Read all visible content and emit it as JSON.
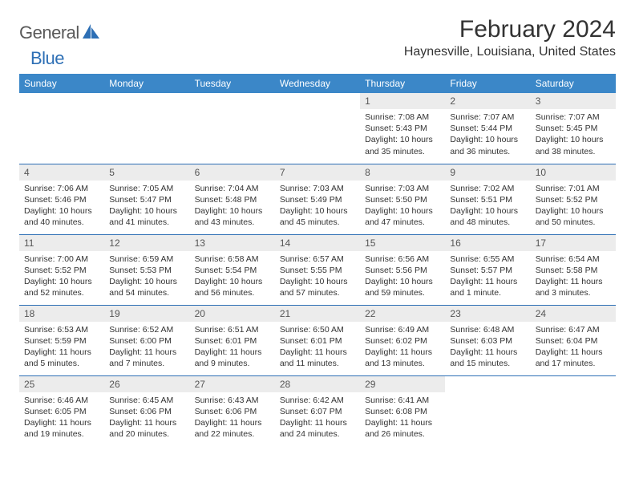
{
  "logo": {
    "general": "General",
    "blue": "Blue"
  },
  "title": "February 2024",
  "location": "Haynesville, Louisiana, United States",
  "colors": {
    "header_bg": "#3b87c8",
    "header_text": "#ffffff",
    "day_num_bg": "#ececec",
    "border": "#2d6fb5",
    "logo_blue": "#2d6fb5",
    "logo_gray": "#5a5a5a",
    "text": "#333333"
  },
  "weekdays": [
    "Sunday",
    "Monday",
    "Tuesday",
    "Wednesday",
    "Thursday",
    "Friday",
    "Saturday"
  ],
  "weeks": [
    [
      null,
      null,
      null,
      null,
      {
        "n": "1",
        "sr": "7:08 AM",
        "ss": "5:43 PM",
        "dl": "10 hours and 35 minutes."
      },
      {
        "n": "2",
        "sr": "7:07 AM",
        "ss": "5:44 PM",
        "dl": "10 hours and 36 minutes."
      },
      {
        "n": "3",
        "sr": "7:07 AM",
        "ss": "5:45 PM",
        "dl": "10 hours and 38 minutes."
      }
    ],
    [
      {
        "n": "4",
        "sr": "7:06 AM",
        "ss": "5:46 PM",
        "dl": "10 hours and 40 minutes."
      },
      {
        "n": "5",
        "sr": "7:05 AM",
        "ss": "5:47 PM",
        "dl": "10 hours and 41 minutes."
      },
      {
        "n": "6",
        "sr": "7:04 AM",
        "ss": "5:48 PM",
        "dl": "10 hours and 43 minutes."
      },
      {
        "n": "7",
        "sr": "7:03 AM",
        "ss": "5:49 PM",
        "dl": "10 hours and 45 minutes."
      },
      {
        "n": "8",
        "sr": "7:03 AM",
        "ss": "5:50 PM",
        "dl": "10 hours and 47 minutes."
      },
      {
        "n": "9",
        "sr": "7:02 AM",
        "ss": "5:51 PM",
        "dl": "10 hours and 48 minutes."
      },
      {
        "n": "10",
        "sr": "7:01 AM",
        "ss": "5:52 PM",
        "dl": "10 hours and 50 minutes."
      }
    ],
    [
      {
        "n": "11",
        "sr": "7:00 AM",
        "ss": "5:52 PM",
        "dl": "10 hours and 52 minutes."
      },
      {
        "n": "12",
        "sr": "6:59 AM",
        "ss": "5:53 PM",
        "dl": "10 hours and 54 minutes."
      },
      {
        "n": "13",
        "sr": "6:58 AM",
        "ss": "5:54 PM",
        "dl": "10 hours and 56 minutes."
      },
      {
        "n": "14",
        "sr": "6:57 AM",
        "ss": "5:55 PM",
        "dl": "10 hours and 57 minutes."
      },
      {
        "n": "15",
        "sr": "6:56 AM",
        "ss": "5:56 PM",
        "dl": "10 hours and 59 minutes."
      },
      {
        "n": "16",
        "sr": "6:55 AM",
        "ss": "5:57 PM",
        "dl": "11 hours and 1 minute."
      },
      {
        "n": "17",
        "sr": "6:54 AM",
        "ss": "5:58 PM",
        "dl": "11 hours and 3 minutes."
      }
    ],
    [
      {
        "n": "18",
        "sr": "6:53 AM",
        "ss": "5:59 PM",
        "dl": "11 hours and 5 minutes."
      },
      {
        "n": "19",
        "sr": "6:52 AM",
        "ss": "6:00 PM",
        "dl": "11 hours and 7 minutes."
      },
      {
        "n": "20",
        "sr": "6:51 AM",
        "ss": "6:01 PM",
        "dl": "11 hours and 9 minutes."
      },
      {
        "n": "21",
        "sr": "6:50 AM",
        "ss": "6:01 PM",
        "dl": "11 hours and 11 minutes."
      },
      {
        "n": "22",
        "sr": "6:49 AM",
        "ss": "6:02 PM",
        "dl": "11 hours and 13 minutes."
      },
      {
        "n": "23",
        "sr": "6:48 AM",
        "ss": "6:03 PM",
        "dl": "11 hours and 15 minutes."
      },
      {
        "n": "24",
        "sr": "6:47 AM",
        "ss": "6:04 PM",
        "dl": "11 hours and 17 minutes."
      }
    ],
    [
      {
        "n": "25",
        "sr": "6:46 AM",
        "ss": "6:05 PM",
        "dl": "11 hours and 19 minutes."
      },
      {
        "n": "26",
        "sr": "6:45 AM",
        "ss": "6:06 PM",
        "dl": "11 hours and 20 minutes."
      },
      {
        "n": "27",
        "sr": "6:43 AM",
        "ss": "6:06 PM",
        "dl": "11 hours and 22 minutes."
      },
      {
        "n": "28",
        "sr": "6:42 AM",
        "ss": "6:07 PM",
        "dl": "11 hours and 24 minutes."
      },
      {
        "n": "29",
        "sr": "6:41 AM",
        "ss": "6:08 PM",
        "dl": "11 hours and 26 minutes."
      },
      null,
      null
    ]
  ],
  "labels": {
    "sunrise": "Sunrise:",
    "sunset": "Sunset:",
    "daylight": "Daylight:"
  }
}
